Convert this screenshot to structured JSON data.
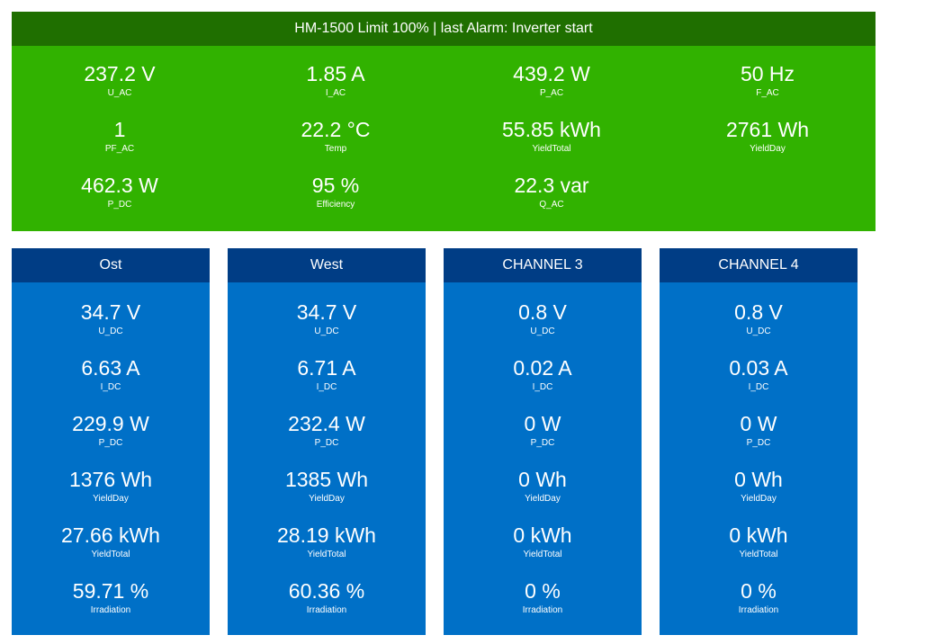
{
  "inverter": {
    "title": "HM-1500 Limit 100% | last Alarm: Inverter start",
    "metrics": [
      {
        "value": "237.2 V",
        "label": "U_AC"
      },
      {
        "value": "1.85 A",
        "label": "I_AC"
      },
      {
        "value": "439.2 W",
        "label": "P_AC"
      },
      {
        "value": "50 Hz",
        "label": "F_AC"
      },
      {
        "value": "1",
        "label": "PF_AC"
      },
      {
        "value": "22.2 °C",
        "label": "Temp"
      },
      {
        "value": "55.85 kWh",
        "label": "YieldTotal"
      },
      {
        "value": "2761 Wh",
        "label": "YieldDay"
      },
      {
        "value": "462.3 W",
        "label": "P_DC"
      },
      {
        "value": "95 %",
        "label": "Efficiency"
      },
      {
        "value": "22.3 var",
        "label": "Q_AC"
      }
    ]
  },
  "channels": [
    {
      "name": "Ost",
      "metrics": [
        {
          "value": "34.7 V",
          "label": "U_DC"
        },
        {
          "value": "6.63 A",
          "label": "I_DC"
        },
        {
          "value": "229.9 W",
          "label": "P_DC"
        },
        {
          "value": "1376 Wh",
          "label": "YieldDay"
        },
        {
          "value": "27.66 kWh",
          "label": "YieldTotal"
        },
        {
          "value": "59.71 %",
          "label": "Irradiation"
        }
      ]
    },
    {
      "name": "West",
      "metrics": [
        {
          "value": "34.7 V",
          "label": "U_DC"
        },
        {
          "value": "6.71 A",
          "label": "I_DC"
        },
        {
          "value": "232.4 W",
          "label": "P_DC"
        },
        {
          "value": "1385 Wh",
          "label": "YieldDay"
        },
        {
          "value": "28.19 kWh",
          "label": "YieldTotal"
        },
        {
          "value": "60.36 %",
          "label": "Irradiation"
        }
      ]
    },
    {
      "name": "CHANNEL 3",
      "metrics": [
        {
          "value": "0.8 V",
          "label": "U_DC"
        },
        {
          "value": "0.02 A",
          "label": "I_DC"
        },
        {
          "value": "0 W",
          "label": "P_DC"
        },
        {
          "value": "0 Wh",
          "label": "YieldDay"
        },
        {
          "value": "0 kWh",
          "label": "YieldTotal"
        },
        {
          "value": "0 %",
          "label": "Irradiation"
        }
      ]
    },
    {
      "name": "CHANNEL 4",
      "metrics": [
        {
          "value": "0.8 V",
          "label": "U_DC"
        },
        {
          "value": "0.03 A",
          "label": "I_DC"
        },
        {
          "value": "0 W",
          "label": "P_DC"
        },
        {
          "value": "0 Wh",
          "label": "YieldDay"
        },
        {
          "value": "0 kWh",
          "label": "YieldTotal"
        },
        {
          "value": "0 %",
          "label": "Irradiation"
        }
      ]
    }
  ],
  "colors": {
    "inverter_bg": "#31b200",
    "inverter_header": "#1f6f00",
    "channel_bg": "#0070c7",
    "channel_header": "#003d85"
  }
}
